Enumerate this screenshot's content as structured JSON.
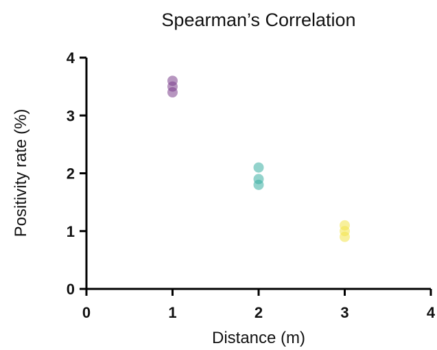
{
  "chart_data": {
    "type": "scatter",
    "title": "Spearman’s Correlation",
    "xlabel": "Distance (m)",
    "ylabel": "Positivity rate (%)",
    "xlim": [
      0,
      4
    ],
    "ylim": [
      0,
      4
    ],
    "xticks": [
      0,
      1,
      2,
      3,
      4
    ],
    "yticks": [
      0,
      1,
      2,
      3,
      4
    ],
    "grid": false,
    "series": [
      {
        "color": "#7b3f8c",
        "points": [
          {
            "x": 1,
            "y": 3.6
          },
          {
            "x": 1,
            "y": 3.5
          },
          {
            "x": 1,
            "y": 3.4
          }
        ]
      },
      {
        "color": "#3aaea3",
        "points": [
          {
            "x": 2,
            "y": 2.1
          },
          {
            "x": 2,
            "y": 1.9
          },
          {
            "x": 2,
            "y": 1.8
          }
        ]
      },
      {
        "color": "#f2e34a",
        "points": [
          {
            "x": 3,
            "y": 1.1
          },
          {
            "x": 3,
            "y": 1.0
          },
          {
            "x": 3,
            "y": 0.9
          }
        ]
      }
    ]
  }
}
